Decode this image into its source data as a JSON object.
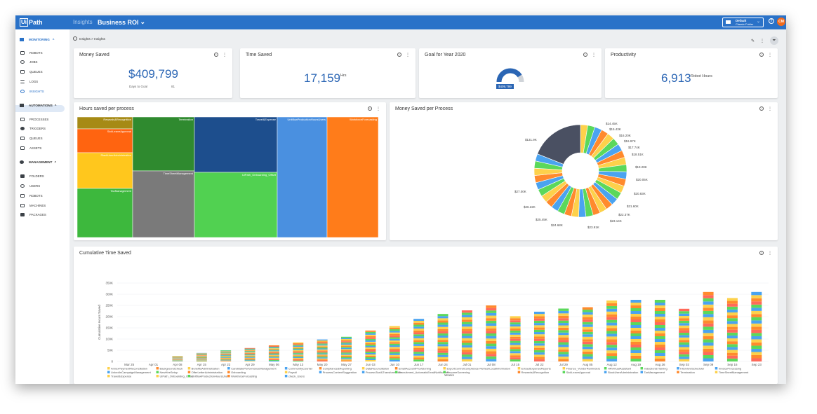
{
  "header": {
    "logo_box": "Ui",
    "logo_text": "Path",
    "nav_insights": "Insights",
    "dashboard_name": "Business ROI",
    "folder_line1": "Default",
    "folder_line2": "Classic Folder",
    "avatar_initials": "CM",
    "help_glyph": "?"
  },
  "sidebar": {
    "monitoring": "MONITORING",
    "monitoring_items": [
      "ROBOTS",
      "JOBS",
      "QUEUES",
      "LOGS",
      "INSIGHTS"
    ],
    "automations": "AUTOMATIONS",
    "automation_items": [
      "PROCESSES",
      "TRIGGERS",
      "QUEUES",
      "ASSETS"
    ],
    "management": "MANAGEMENT",
    "management_items": [
      "FOLDERS",
      "USERS",
      "ROBOTS",
      "MACHINES",
      "PACKAGES"
    ],
    "active_item": "INSIGHTS"
  },
  "breadcrumb": "Insights > Insights",
  "kpis": {
    "money_saved": {
      "title": "Money Saved",
      "value": "$409,799",
      "sub_label": "Days to Goal",
      "sub_value": "81"
    },
    "time_saved": {
      "title": "Time Saved",
      "value": "17,159",
      "unit": "Hrs"
    },
    "goal": {
      "title": "Goal for Year 2020",
      "value": "$409,799",
      "progress": 0.82
    },
    "productivity": {
      "title": "Productivity",
      "value": "6,913",
      "unit": "Robot Hours"
    }
  },
  "colors": {
    "brand": "#2a72c8",
    "palette": [
      "#fdd14b",
      "#ff8a2d",
      "#fdd14b",
      "#4aa3f0",
      "#5bd85b",
      "#ff8a2d",
      "#2f6fd8",
      "#fdd14b",
      "#ff8a2d",
      "#4aa3f0",
      "#5bd85b",
      "#ff8a2d"
    ]
  },
  "treemap": {
    "title": "Hours saved per process",
    "cells": [
      {
        "label": "Rewards&Recognition",
        "color": "#a68a15"
      },
      {
        "label": "SickLeaveApproval",
        "color": "#ff6410"
      },
      {
        "label": "SlackUserAdministration",
        "color": "#ffc71d"
      },
      {
        "label": "TaxManagement",
        "color": "#3db83d"
      },
      {
        "label": "Termination",
        "color": "#2f8a2f"
      },
      {
        "label": "TimeSheetManagement",
        "color": "#7a7a7a"
      },
      {
        "label": "Travel&Expense",
        "color": "#1d4e8d"
      },
      {
        "label": "UiPath_Onboarding_Offset",
        "color": "#51d151"
      },
      {
        "label": "UnitflowProductionHoursUsers",
        "color": "#4a90e0"
      },
      {
        "label": "WorkforceForecasting",
        "color": "#ff7c1a"
      }
    ]
  },
  "pie": {
    "title": "Money Saved per Process",
    "labels": [
      "$14.45K",
      "$15.43K",
      "$16.20K",
      "$16.97K",
      "$17.74K",
      "$18.51K",
      "$19.28K",
      "$20.05K",
      "$20.83K",
      "$21.60K",
      "$22.37K",
      "$23.14K",
      "$23.91K",
      "$24.68K",
      "$25.45K",
      "$26.22K",
      "$27.00K",
      "$131.9K"
    ]
  },
  "cumulative": {
    "title": "Cumulative Time Saved",
    "ylabel": "Cumulative Hours Saved",
    "xlabel": "Weeks"
  },
  "chart_data": {
    "type": "bar",
    "title": "Cumulative Time Saved",
    "xlabel": "Weeks",
    "ylabel": "Cumulative Hours Saved",
    "ylim": [
      0,
      350000
    ],
    "yticks": [
      "0",
      "50K",
      "100K",
      "150K",
      "200K",
      "250K",
      "300K",
      "350K"
    ],
    "categories": [
      "Mar 25",
      "Apr 01",
      "Apr 08",
      "Apr 15",
      "Apr 22",
      "Apr 29",
      "May 06",
      "May 13",
      "May 20",
      "May 27",
      "Jun 03",
      "Jun 10",
      "Jun 17",
      "Jun 24",
      "Jul 01",
      "Jul 08",
      "Jul 15",
      "Jul 22",
      "Jul 29",
      "Aug 05",
      "Aug 12",
      "Aug 19",
      "Aug 26",
      "Sep 02",
      "Sep 09",
      "Sep 16",
      "Sep 23"
    ],
    "values": [
      0,
      0,
      25000,
      38000,
      50000,
      60000,
      72000,
      85000,
      98000,
      110000,
      138000,
      158000,
      190000,
      212000,
      228000,
      250000,
      202000,
      222000,
      236000,
      242000,
      272000,
      275000,
      275000,
      235000,
      310000,
      283000,
      310000
    ],
    "legend": [
      "AnnexPaymentReconciliation",
      "BackgroundCheck",
      "BenefitsAdministration",
      "CandidatePerformanceManagement",
      "CommunityCounter",
      "Compliance&Reporting",
      "DataReconciliation",
      "EmailAccountProvisioning",
      "ExportControlCompliance-RefreshLocalInformation",
      "ExtractExpenseReports",
      "Finance_VendorReminders",
      "HRVirtualAssistant",
      "Induction&Training",
      "InterviewScheduler",
      "InvoiceProcessing",
      "LinkedInCampaignManagement",
      "NewHireSetup",
      "OfferLetterAdministration",
      "Onboarding",
      "Payroll",
      "ProcessContentSuggestion",
      "ProcessTaxt&Transformation",
      "Recruitment_AutomaticEmailNotification",
      "ResumeScreening",
      "Rewards&Recognition",
      "SickLeaveApproval",
      "SlackUserAdministration",
      "TaxManagement",
      "Termination",
      "TimeSheetManagement",
      "Travel&Expense",
      "UiPath_Onboarding_Offset",
      "UnitflowProductionHoursUsers",
      "WorkforceForcasting",
      "check_Users"
    ]
  }
}
